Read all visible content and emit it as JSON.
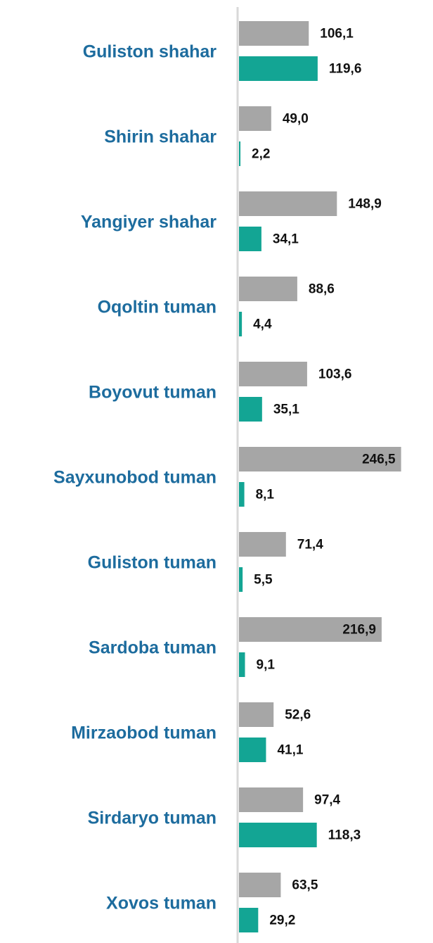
{
  "chart_data": {
    "type": "hbar",
    "categories": [
      "Guliston shahar",
      "Shirin shahar",
      "Yangiyer shahar",
      "Oqoltin tuman",
      "Boyovut tuman",
      "Sayxunobod tuman",
      "Guliston tuman",
      "Sardoba tuman",
      "Mirzaobod tuman",
      "Sirdaryo tuman",
      "Xovos tuman"
    ],
    "series": [
      {
        "color": "#a6a6a6",
        "values": [
          106.1,
          49.0,
          148.9,
          88.6,
          103.6,
          246.5,
          71.4,
          216.9,
          52.6,
          97.4,
          63.5
        ],
        "value_labels": [
          "106,1",
          "49,0",
          "148,9",
          "88,6",
          "103,6",
          "246,5",
          "71,4",
          "216,9",
          "52,6",
          "97,4",
          "63,5"
        ]
      },
      {
        "color": "#13a594",
        "values": [
          119.6,
          2.2,
          34.1,
          4.4,
          35.1,
          8.1,
          5.5,
          9.1,
          41.1,
          118.3,
          29.2
        ],
        "value_labels": [
          "119,6",
          "2,2",
          "34,1",
          "4,4",
          "35,1",
          "8,1",
          "5,5",
          "9,1",
          "41,1",
          "118,3",
          "29,2"
        ]
      }
    ],
    "xlim": [
      0,
      295
    ]
  }
}
